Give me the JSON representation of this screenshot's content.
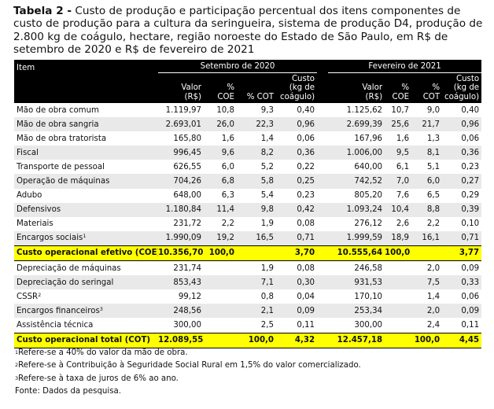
{
  "title": {
    "lead": "Tabela 2 -",
    "text": " Custo de produção e participação percentual dos itens componentes de custo de produção para a cultura da seringueira, sistema de produção D4, produção de 2.800 kg de coágulo, hectare, região noroeste do Estado de São Paulo, em R$ de setembro de 2020 e R$ de fevereiro de 2021"
  },
  "table": {
    "item_header": "Item",
    "groups": [
      "Setembro de 2020",
      "Fevereiro de 2021"
    ],
    "subheaders": [
      [
        "Valor",
        "(R$)"
      ],
      [
        "%",
        "COE"
      ],
      [
        "% COT"
      ],
      [
        "Custo",
        "(kg de",
        "coágulo)"
      ],
      [
        "Valor",
        "(R$)"
      ],
      [
        "%",
        "COE"
      ],
      [
        "%",
        "COT"
      ],
      [
        "Custo",
        "(kg de",
        "coágulo)"
      ]
    ],
    "rows": [
      {
        "label": "Mão de obra comum",
        "sup": "",
        "shade": false,
        "highlight": false,
        "values": [
          "1.119,97",
          "10,8",
          "9,3",
          "0,40",
          "1.125,62",
          "10,7",
          "9,0",
          "0,40"
        ]
      },
      {
        "label": "Mão de obra sangria",
        "sup": "",
        "shade": true,
        "highlight": false,
        "values": [
          "2.693,01",
          "26,0",
          "22,3",
          "0,96",
          "2.699,39",
          "25,6",
          "21,7",
          "0,96"
        ]
      },
      {
        "label": "Mão de obra tratorista",
        "sup": "",
        "shade": false,
        "highlight": false,
        "values": [
          "165,80",
          "1,6",
          "1,4",
          "0,06",
          "167,96",
          "1,6",
          "1,3",
          "0,06"
        ]
      },
      {
        "label": "Fiscal",
        "sup": "",
        "shade": true,
        "highlight": false,
        "values": [
          "996,45",
          "9,6",
          "8,2",
          "0,36",
          "1.006,00",
          "9,5",
          "8,1",
          "0,36"
        ]
      },
      {
        "label": "Transporte de pessoal",
        "sup": "",
        "shade": false,
        "highlight": false,
        "values": [
          "626,55",
          "6,0",
          "5,2",
          "0,22",
          "640,00",
          "6,1",
          "5,1",
          "0,23"
        ]
      },
      {
        "label": "Operação de máquinas",
        "sup": "",
        "shade": true,
        "highlight": false,
        "values": [
          "704,26",
          "6,8",
          "5,8",
          "0,25",
          "742,52",
          "7,0",
          "6,0",
          "0,27"
        ]
      },
      {
        "label": "Adubo",
        "sup": "",
        "shade": false,
        "highlight": false,
        "values": [
          "648,00",
          "6,3",
          "5,4",
          "0,23",
          "805,20",
          "7,6",
          "6,5",
          "0,29"
        ]
      },
      {
        "label": "Defensivos",
        "sup": "",
        "shade": true,
        "highlight": false,
        "values": [
          "1.180,84",
          "11,4",
          "9,8",
          "0,42",
          "1.093,24",
          "10,4",
          "8,8",
          "0,39"
        ]
      },
      {
        "label": "Materiais",
        "sup": "",
        "shade": false,
        "highlight": false,
        "values": [
          "231,72",
          "2,2",
          "1,9",
          "0,08",
          "276,12",
          "2,6",
          "2,2",
          "0,10"
        ]
      },
      {
        "label": "Encargos sociais",
        "sup": "1",
        "shade": true,
        "highlight": false,
        "values": [
          "1.990,09",
          "19,2",
          "16,5",
          "0,71",
          "1.999,59",
          "18,9",
          "16,1",
          "0,71"
        ]
      },
      {
        "label": "Custo operacional efetivo (COE)",
        "sup": "",
        "shade": false,
        "highlight": true,
        "values": [
          "10.356,70",
          "100,0",
          "",
          "3,70",
          "10.555,64",
          "100,0",
          "",
          "3,77"
        ]
      },
      {
        "label": "Depreciação de máquinas",
        "sup": "",
        "shade": false,
        "highlight": false,
        "values": [
          "231,74",
          "",
          "1,9",
          "0,08",
          "246,58",
          "",
          "2,0",
          "0,09"
        ]
      },
      {
        "label": "Depreciação do seringal",
        "sup": "",
        "shade": true,
        "highlight": false,
        "values": [
          "853,43",
          "",
          "7,1",
          "0,30",
          "931,53",
          "",
          "7,5",
          "0,33"
        ]
      },
      {
        "label": "CSSR",
        "sup": "2",
        "shade": false,
        "highlight": false,
        "values": [
          "99,12",
          "",
          "0,8",
          "0,04",
          "170,10",
          "",
          "1,4",
          "0,06"
        ]
      },
      {
        "label": "Encargos financeiros",
        "sup": "3",
        "shade": true,
        "highlight": false,
        "values": [
          "248,56",
          "",
          "2,1",
          "0,09",
          "253,34",
          "",
          "2,0",
          "0,09"
        ]
      },
      {
        "label": "Assistência técnica",
        "sup": "",
        "shade": false,
        "highlight": false,
        "values": [
          "300,00",
          "",
          "2,5",
          "0,11",
          "300,00",
          "",
          "2,4",
          "0,11"
        ]
      },
      {
        "label": "Custo operacional total (COT)",
        "sup": "",
        "shade": false,
        "highlight": true,
        "values": [
          "12.089,55",
          "",
          "100,0",
          "4,32",
          "12.457,18",
          "",
          "100,0",
          "4,45"
        ]
      }
    ]
  },
  "notes": [
    {
      "sup": "1",
      "text": "Refere-se a 40% do valor da mão de obra."
    },
    {
      "sup": "2",
      "text": "Refere-se à Contribuição à Seguridade Social Rural em 1,5% do valor comercializado."
    },
    {
      "sup": "3",
      "text": "Refere-se à taxa de juros de 6% ao ano."
    },
    {
      "sup": "",
      "text": "Fonte: Dados da pesquisa."
    }
  ]
}
